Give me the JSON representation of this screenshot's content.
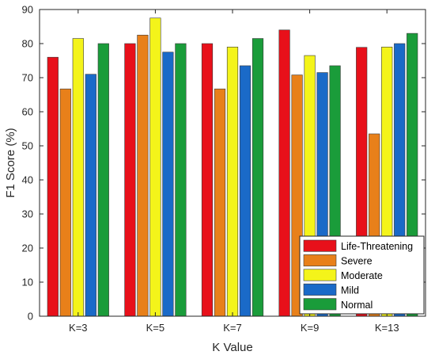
{
  "chart_data": {
    "type": "bar",
    "title": "",
    "xlabel": "K Value",
    "ylabel": "F1 Score (%)",
    "ylim": [
      0,
      90
    ],
    "yticks": [
      0,
      10,
      20,
      30,
      40,
      50,
      60,
      70,
      80,
      90
    ],
    "grid": false,
    "legend_position": "bottom-right",
    "categories": [
      "K=3",
      "K=5",
      "K=7",
      "K=9",
      "K=13"
    ],
    "series": [
      {
        "name": "Life-Threatening",
        "color": "#e8101a",
        "values": [
          76,
          80,
          80,
          84,
          78.9
        ]
      },
      {
        "name": "Severe",
        "color": "#e8801a",
        "values": [
          66.7,
          82.5,
          66.7,
          70.8,
          53.5
        ]
      },
      {
        "name": "Moderate",
        "color": "#f4f41a",
        "values": [
          81.5,
          87.5,
          79,
          76.5,
          79
        ]
      },
      {
        "name": "Mild",
        "color": "#1a6ac8",
        "values": [
          71,
          77.5,
          73.5,
          71.5,
          80
        ]
      },
      {
        "name": "Normal",
        "color": "#1a9c3a",
        "values": [
          80,
          80,
          81.5,
          73.5,
          83
        ]
      }
    ]
  }
}
